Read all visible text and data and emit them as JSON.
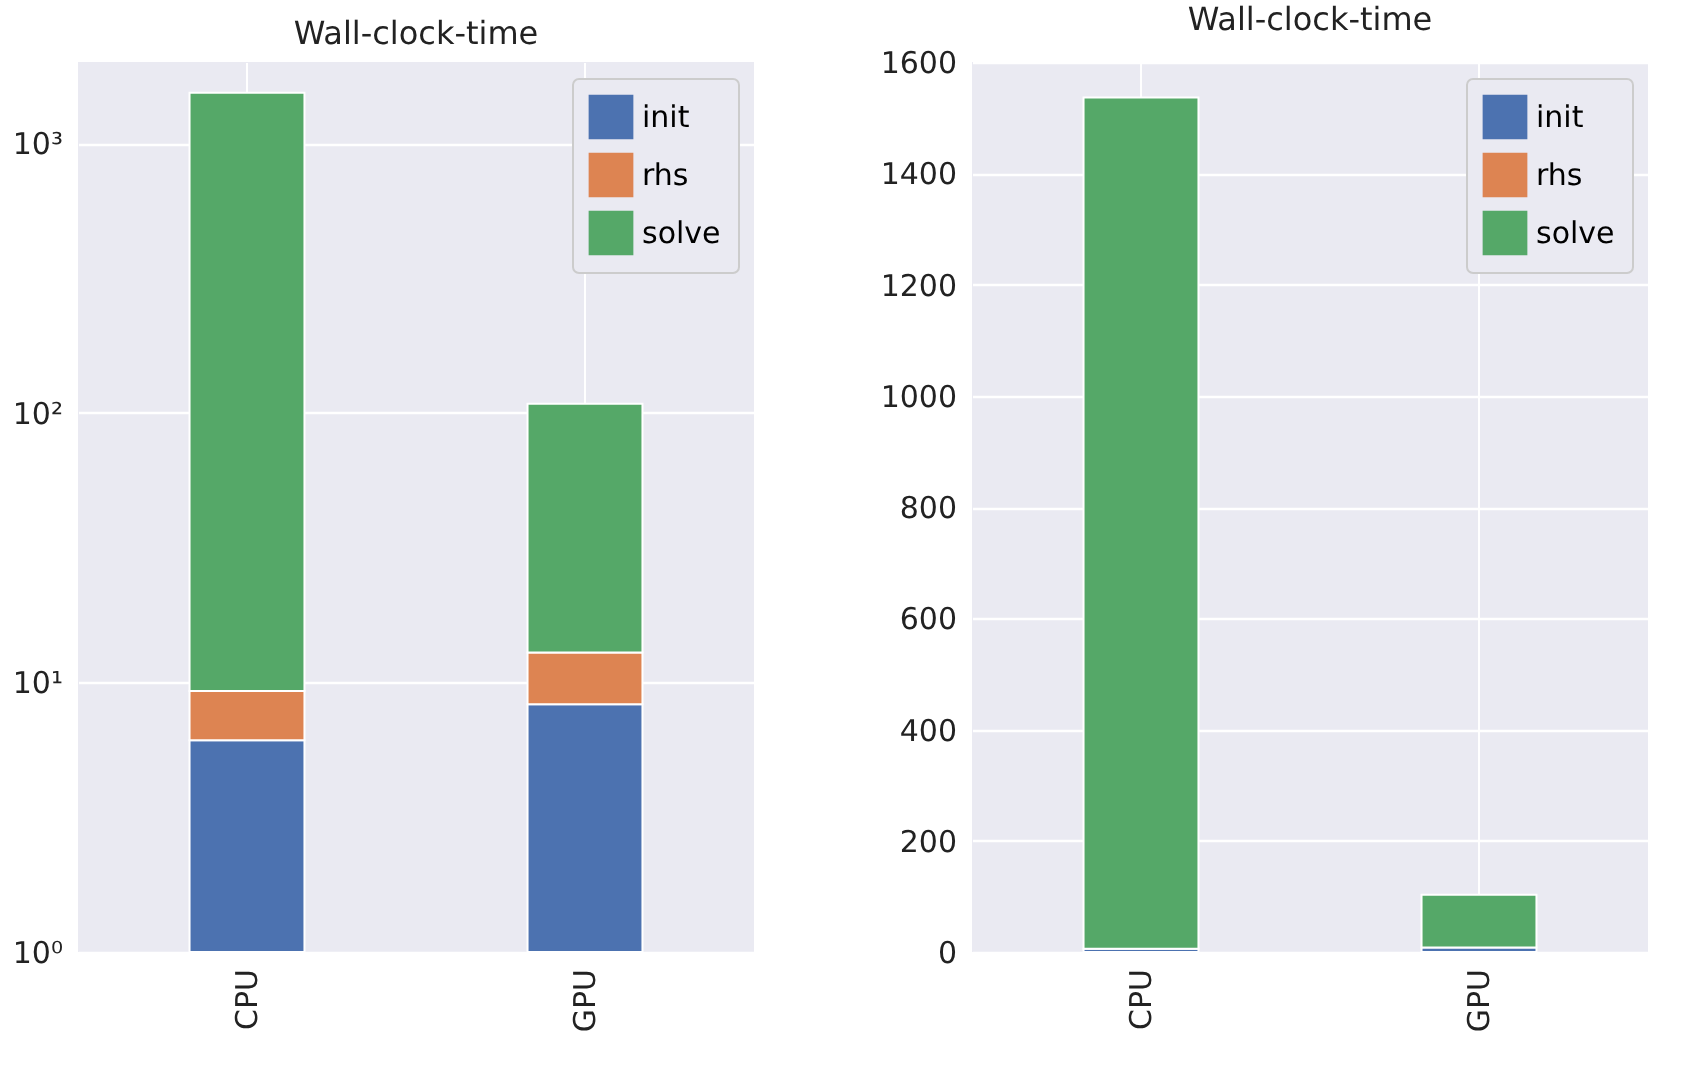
{
  "chart_data": [
    {
      "type": "bar",
      "title": "Wall-clock-time",
      "categories": [
        "CPU",
        "GPU"
      ],
      "stacked": true,
      "log": "y",
      "ylim": [
        1,
        2000
      ],
      "yticks": [
        {
          "value": 1,
          "label": "10⁰"
        },
        {
          "value": 10,
          "label": "10¹"
        },
        {
          "value": 100,
          "label": "10²"
        },
        {
          "value": 1000,
          "label": "10³"
        }
      ],
      "grid": true,
      "legend": "top right",
      "series": [
        {
          "name": "init",
          "color": "#4c72b0",
          "values": [
            6.1,
            8.3
          ]
        },
        {
          "name": "rhs",
          "color": "#dd8452",
          "values": [
            3.2,
            4.6
          ]
        },
        {
          "name": "solve",
          "color": "#55a868",
          "values": [
            1530,
            95
          ]
        }
      ]
    },
    {
      "type": "bar",
      "title": "Wall-clock-time",
      "categories": [
        "CPU",
        "GPU"
      ],
      "stacked": true,
      "ylim": [
        0,
        1600
      ],
      "yticks": [
        0,
        200,
        400,
        600,
        800,
        1000,
        1200,
        1400,
        1600
      ],
      "grid": true,
      "legend": "top right",
      "series": [
        {
          "name": "init",
          "color": "#4c72b0",
          "values": [
            6,
            8
          ]
        },
        {
          "name": "rhs",
          "color": "#dd8452",
          "values": [
            null,
            null
          ]
        },
        {
          "name": "solve",
          "color": "#55a868",
          "values": [
            1530,
            95
          ]
        }
      ]
    }
  ]
}
